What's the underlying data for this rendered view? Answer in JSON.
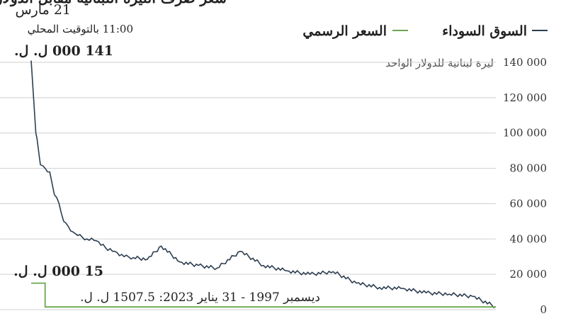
{
  "header": {
    "cut_title": "سعر صرف الليرة اللبنانية مقابل الدولار الأمريكي",
    "date": "21 مارس",
    "time_note": "11:00 بالتوقيت المحلي"
  },
  "legend": {
    "black_market": "السوق السوداء",
    "official_rate": "السعر الرسمي"
  },
  "annotations": {
    "latest_value": "141 000 ل. ل.",
    "current_official": "15 000 ل. ل.",
    "old_official": "ديسمبر 1997 - 31 يناير 2023: 1507.5 ل. ل."
  },
  "colors": {
    "black_market": "#2c3e50",
    "official": "#6aa84f",
    "grid": "#cfcfcf"
  },
  "chart_data": {
    "type": "line",
    "ylabel": "ليرة لبنانية للدولار الواحد",
    "ylim": [
      0,
      140000
    ],
    "yticks": [
      0,
      20000,
      40000,
      60000,
      80000,
      100000,
      120000,
      140000
    ],
    "ytick_labels": [
      "0",
      "20 000",
      "40 000",
      "60 000",
      "80 000",
      "100 000",
      "120 000",
      "140 000"
    ],
    "x_direction": "right-to-left (latest on the left)",
    "x": [
      0,
      1,
      1.5,
      2,
      3,
      4,
      5,
      6,
      7,
      8,
      9,
      10,
      12,
      14,
      16,
      18,
      20,
      22,
      25,
      28,
      32,
      36,
      40,
      45,
      50,
      55,
      60,
      65,
      70,
      75,
      80,
      85,
      90,
      95,
      100
    ],
    "series": [
      {
        "name": "السوق السوداء",
        "values": [
          141000,
          100000,
          92000,
          82000,
          80000,
          78000,
          65000,
          60000,
          50000,
          47000,
          44000,
          42000,
          40000,
          39000,
          35000,
          33000,
          30000,
          29500,
          28500,
          36000,
          27000,
          25000,
          23500,
          33000,
          25000,
          22000,
          20000,
          21500,
          15000,
          12500,
          12000,
          9500,
          8800,
          7500,
          1600
        ]
      },
      {
        "name": "السعر الرسمي",
        "values": [
          15000,
          15000,
          15000,
          15000,
          1507.5,
          1507.5,
          1507.5,
          1507.5,
          1507.5,
          1507.5,
          1507.5,
          1507.5,
          1507.5,
          1507.5,
          1507.5,
          1507.5,
          1507.5,
          1507.5,
          1507.5,
          1507.5,
          1507.5,
          1507.5,
          1507.5,
          1507.5,
          1507.5,
          1507.5,
          1507.5,
          1507.5,
          1507.5,
          1507.5,
          1507.5,
          1507.5,
          1507.5,
          1507.5,
          1507.5
        ]
      }
    ],
    "grid": true,
    "legend_position": "top"
  }
}
